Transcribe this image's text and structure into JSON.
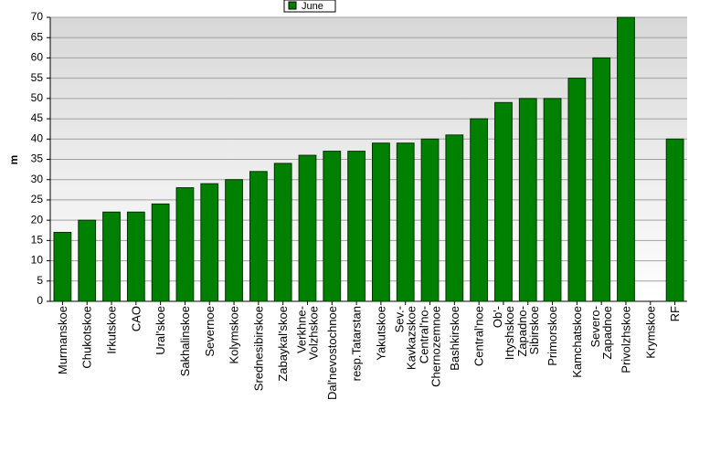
{
  "chart_data": {
    "type": "bar",
    "legend": "June",
    "y_label": "m",
    "categories": [
      "Murmanskoe",
      "Chukotskoe",
      "Irkutskoe",
      "CAO",
      "Ural'skoe",
      "Sakhalinskoe",
      "Severnoe",
      "Kolymskoe",
      "Srednesibirskoe",
      "Zabaykal'skoe",
      "Verkhne-\nVolzhskoe",
      "Dal'nevostochnoe",
      "resp.Tatarstan",
      "Yakutskoe",
      "Sev.-\nKavkazskoe",
      "Central'no-\nChernozemnoe",
      "Bashkirskoe",
      "Central'noe",
      "Ob'-\nIrtyshskoe",
      "Zapadno-\nSibirskoe",
      "Primorskoe",
      "Kamchatskoe",
      "Severo-\nZapadnoe",
      "Privolzhskoe",
      "Krymskoe",
      "RF"
    ],
    "values": [
      17,
      20,
      22,
      22,
      24,
      28,
      29,
      30,
      32,
      34,
      36,
      37,
      37,
      39,
      39,
      40,
      41,
      45,
      49,
      50,
      50,
      55,
      60,
      70,
      null,
      40
    ],
    "color": "#008000",
    "ylim": [
      0,
      70
    ],
    "yticks": [
      0,
      5,
      10,
      15,
      20,
      25,
      30,
      35,
      40,
      45,
      50,
      55,
      60,
      65,
      70
    ],
    "grid": true
  }
}
